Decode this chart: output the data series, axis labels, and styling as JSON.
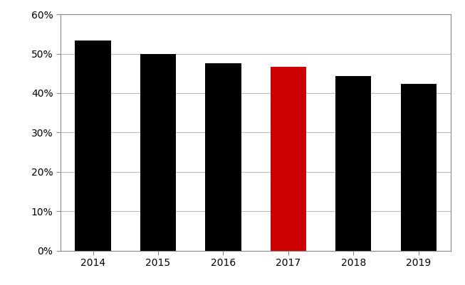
{
  "categories": [
    "2014",
    "2015",
    "2016",
    "2017",
    "2018",
    "2019"
  ],
  "values": [
    0.533,
    0.5,
    0.476,
    0.466,
    0.444,
    0.424
  ],
  "bar_colors": [
    "#000000",
    "#000000",
    "#000000",
    "#cc0000",
    "#000000",
    "#000000"
  ],
  "ylim": [
    0,
    0.6
  ],
  "yticks": [
    0.0,
    0.1,
    0.2,
    0.3,
    0.4,
    0.5,
    0.6
  ],
  "background_color": "#ffffff",
  "grid_color": "#bbbbbb",
  "bar_width": 0.55,
  "spine_color": "#888888",
  "tick_label_fontsize": 10,
  "figsize": [
    6.53,
    4.01
  ],
  "dpi": 100
}
